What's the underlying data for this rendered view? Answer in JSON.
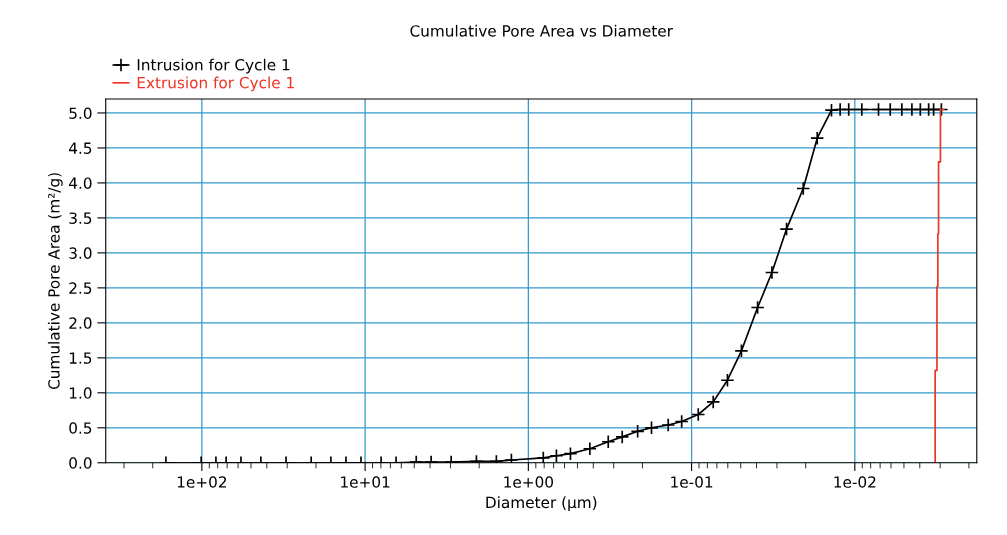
{
  "chart_data": {
    "type": "line",
    "title": "Cumulative Pore Area vs Diameter",
    "xlabel": "Diameter (µm)",
    "ylabel": "Cumulative Pore Area (m²/g)",
    "log": "x",
    "xlim": [
      388,
      0.00179
    ],
    "xticks": [
      {
        "value": 100,
        "label": "1e+02"
      },
      {
        "value": 10,
        "label": "1e+01"
      },
      {
        "value": 1,
        "label": "1e+00"
      },
      {
        "value": 0.1,
        "label": "1e-01"
      },
      {
        "value": 0.01,
        "label": "1e-02"
      }
    ],
    "ylim": [
      0,
      5.2
    ],
    "yticks": [
      {
        "value": 0,
        "label": "0.0"
      },
      {
        "value": 0.5,
        "label": "0.5"
      },
      {
        "value": 1,
        "label": "1.0"
      },
      {
        "value": 1.5,
        "label": "1.5"
      },
      {
        "value": 2,
        "label": "2.0"
      },
      {
        "value": 2.5,
        "label": "2.5"
      },
      {
        "value": 3,
        "label": "3.0"
      },
      {
        "value": 3.5,
        "label": "3.5"
      },
      {
        "value": 4,
        "label": "4.0"
      },
      {
        "value": 4.5,
        "label": "4.5"
      },
      {
        "value": 5,
        "label": "5.0"
      }
    ],
    "grid": true,
    "legend": "top left",
    "line_style": "solid",
    "series": [
      {
        "name": "Intrusion for Cycle 1",
        "color": "#000000",
        "marker": "cross",
        "x": [
          166,
          101,
          82,
          71,
          57.6,
          43.5,
          30.5,
          21.4,
          16.2,
          13.1,
          10.6,
          7.98,
          6.46,
          4.86,
          3.94,
          2.97,
          2.08,
          1.57,
          1.27,
          0.81,
          0.673,
          0.552,
          0.42,
          0.324,
          0.266,
          0.214,
          0.176,
          0.139,
          0.115,
          0.091,
          0.0737,
          0.0603,
          0.0495,
          0.0394,
          0.0322,
          0.0262,
          0.0207,
          0.017,
          0.0139,
          0.0123,
          0.0109,
          0.00906,
          0.00716,
          0.00607,
          0.00515,
          0.00447,
          0.00397,
          0.00353,
          0.00329,
          0.00295
        ],
        "values": [
          0,
          0,
          0,
          0,
          0,
          0,
          0,
          0,
          0,
          0,
          0,
          0,
          0,
          0.01,
          0.01,
          0.01,
          0.02,
          0.02,
          0.04,
          0.07,
          0.1,
          0.13,
          0.2,
          0.3,
          0.37,
          0.45,
          0.5,
          0.54,
          0.59,
          0.69,
          0.87,
          1.18,
          1.6,
          2.22,
          2.72,
          3.34,
          3.92,
          4.64,
          5.04,
          5.05,
          5.05,
          5.05,
          5.05,
          5.05,
          5.05,
          5.05,
          5.05,
          5.05,
          5.05,
          5.05
        ]
      },
      {
        "name": "Extrusion for Cycle 1",
        "color": "#ee3322",
        "marker": "none",
        "x": [
          0.00322,
          0.00322,
          0.00314,
          0.00314,
          0.0031,
          0.0031,
          0.00307,
          0.00307,
          0.00299,
          0.00299,
          0.00285
        ],
        "values": [
          0,
          1.32,
          1.32,
          2.52,
          2.52,
          3.27,
          3.27,
          4.3,
          4.3,
          5.05,
          5.05
        ]
      }
    ]
  }
}
